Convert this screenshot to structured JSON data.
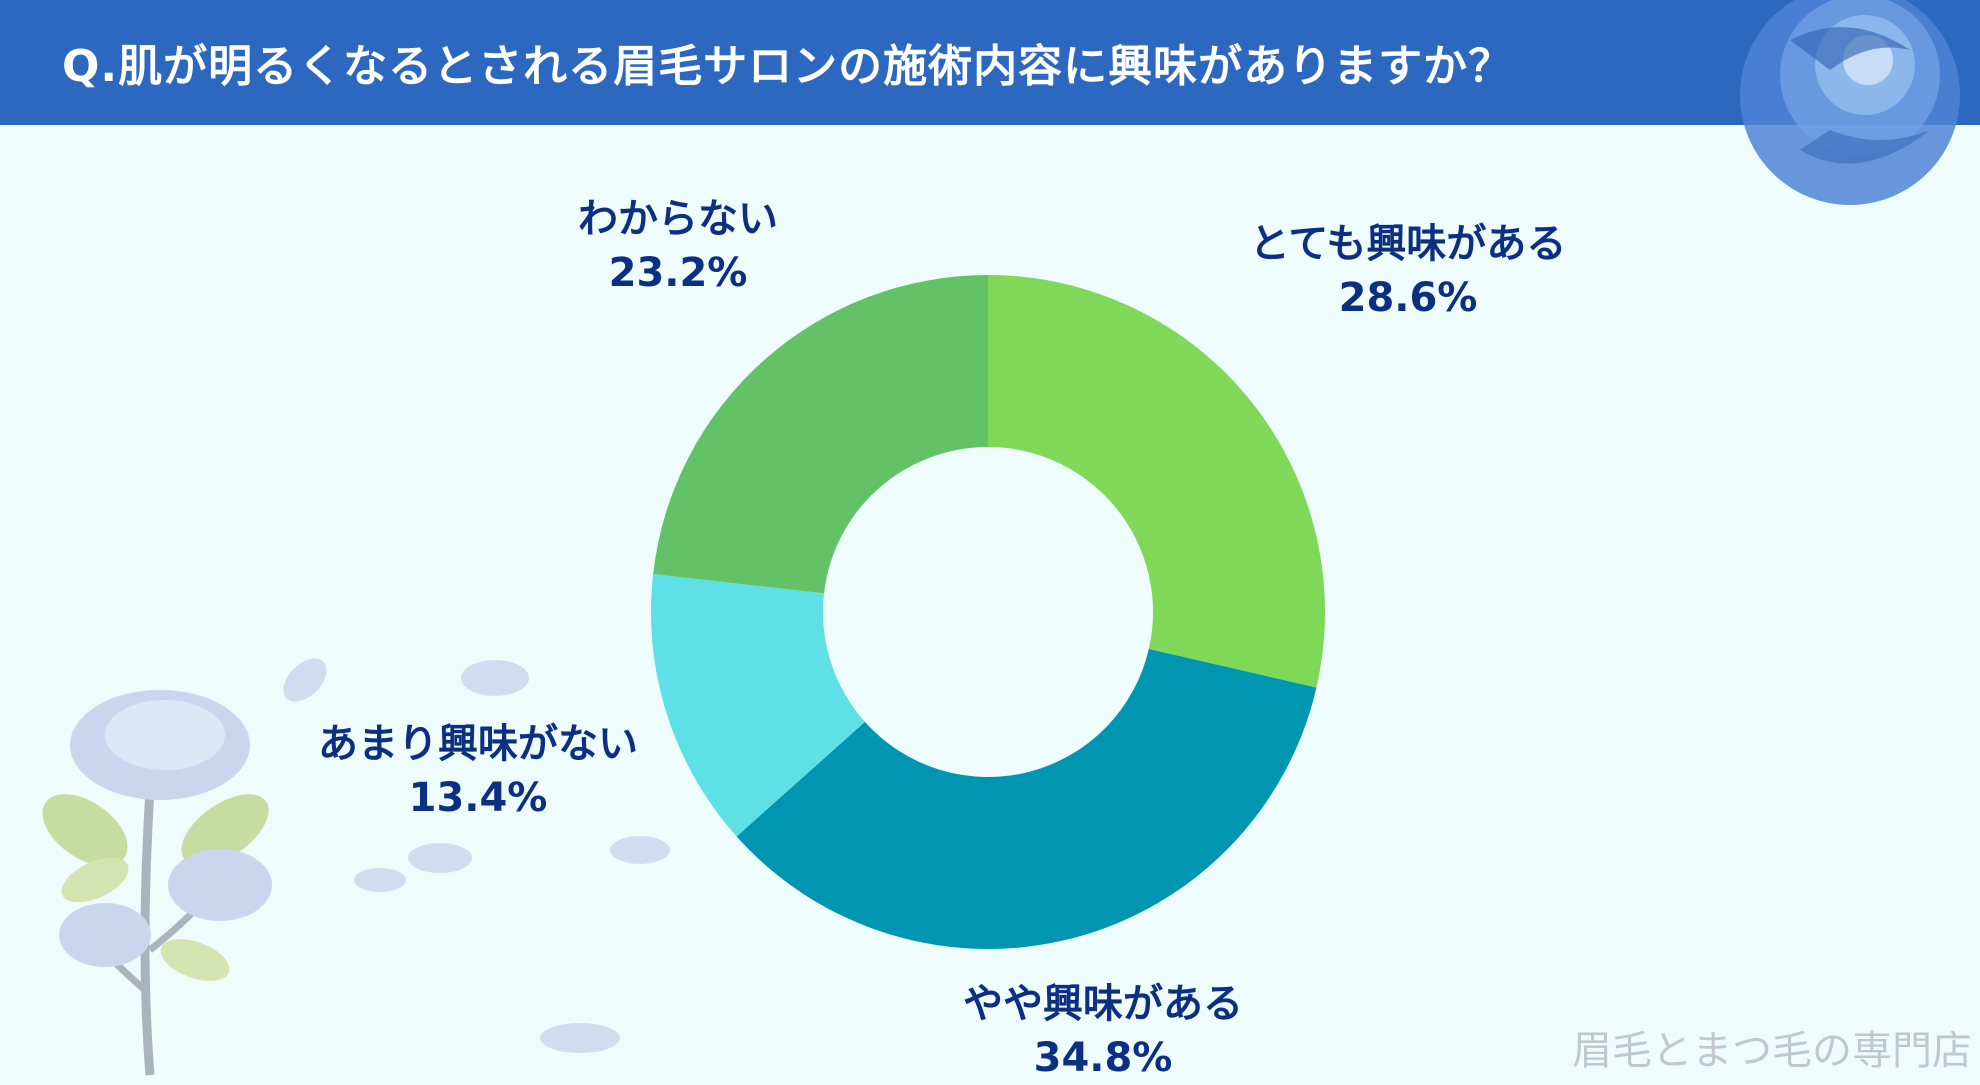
{
  "header": {
    "title": "Q.肌が明るくなるとされる眉毛サロンの施術内容に興味がありますか？",
    "background_color": "#2c67c0"
  },
  "chart_data": {
    "type": "pie",
    "style": "donut",
    "title": "Q.肌が明るくなるとされる眉毛サロンの施術内容に興味がありますか？",
    "slices": [
      {
        "label": "とても興味がある",
        "value": 28.6,
        "value_label": "28.6%",
        "color": "#7fd858"
      },
      {
        "label": "やや興味がある",
        "value": 34.8,
        "value_label": "34.8%",
        "color": "#0096b2"
      },
      {
        "label": "あまり興味がない",
        "value": 13.4,
        "value_label": "13.4%",
        "color": "#5fe0e6"
      },
      {
        "label": "わからない",
        "value": 23.2,
        "value_label": "23.2%",
        "color": "#64c266"
      }
    ]
  },
  "decorations": {
    "icons": [
      "blue-rose-icon",
      "rose-bouquet-icon",
      "petal-icon"
    ]
  },
  "watermark": "眉毛とまつ毛の専門店"
}
